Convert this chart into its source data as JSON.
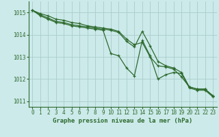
{
  "x": [
    0,
    1,
    2,
    3,
    4,
    5,
    6,
    7,
    8,
    9,
    10,
    11,
    12,
    13,
    14,
    15,
    16,
    17,
    18,
    19,
    20,
    21,
    22,
    23
  ],
  "line1": [
    1015.1,
    1014.95,
    1014.85,
    1014.7,
    1014.65,
    1014.55,
    1014.5,
    1014.4,
    1014.35,
    1014.3,
    1014.25,
    1014.15,
    1013.8,
    1013.55,
    1013.65,
    1013.0,
    1012.6,
    1012.55,
    1012.45,
    1012.1,
    1011.65,
    1011.55,
    1011.55,
    1011.25
  ],
  "line2": [
    1015.1,
    1014.9,
    1014.75,
    1014.6,
    1014.55,
    1014.45,
    1014.4,
    1014.35,
    1014.3,
    1014.25,
    1014.2,
    1014.1,
    1013.7,
    1013.45,
    1014.15,
    1013.5,
    1012.8,
    1012.6,
    1012.5,
    1012.3,
    1011.65,
    1011.55,
    1011.55,
    1011.25
  ],
  "line3": [
    1015.1,
    1014.85,
    1014.7,
    1014.55,
    1014.5,
    1014.4,
    1014.35,
    1014.3,
    1014.25,
    1014.2,
    1013.15,
    1013.05,
    1012.5,
    1012.15,
    1013.75,
    1013.05,
    1012.0,
    1012.2,
    1012.3,
    1012.25,
    1011.6,
    1011.5,
    1011.5,
    1011.2
  ],
  "line_color": "#2d6a2d",
  "bg_color": "#cceaea",
  "grid_color": "#aacccc",
  "xlabel": "Graphe pression niveau de la mer (hPa)",
  "ylim": [
    1010.75,
    1015.5
  ],
  "xlim": [
    -0.5,
    23.5
  ],
  "yticks": [
    1011,
    1012,
    1013,
    1014,
    1015
  ],
  "xticks": [
    0,
    1,
    2,
    3,
    4,
    5,
    6,
    7,
    8,
    9,
    10,
    11,
    12,
    13,
    14,
    15,
    16,
    17,
    18,
    19,
    20,
    21,
    22,
    23
  ],
  "tick_fontsize": 5.5,
  "label_fontsize": 6.5,
  "linewidth": 0.9,
  "markersize": 3.0
}
